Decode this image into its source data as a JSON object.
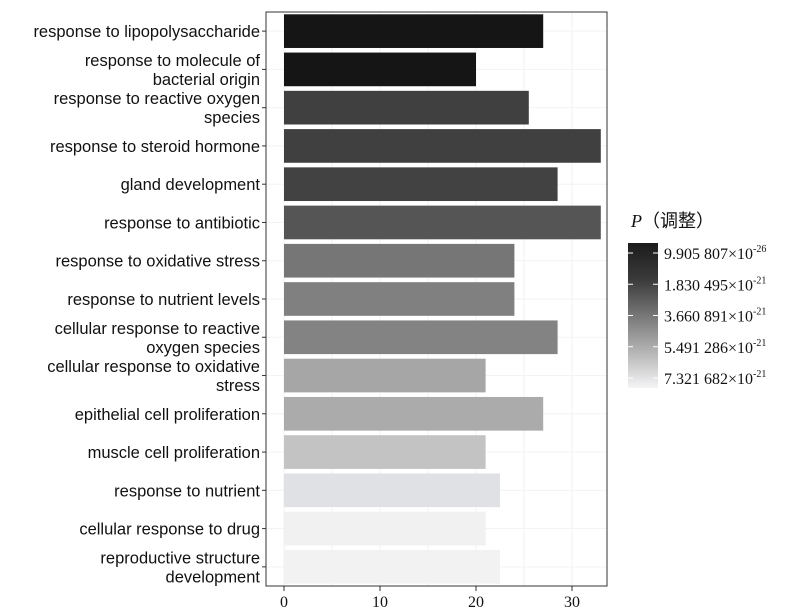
{
  "chart_data": {
    "type": "bar",
    "orientation": "horizontal",
    "categories": [
      "response to lipopolysaccharide",
      "response to molecule of bacterial origin",
      "response to reactive oxygen species",
      "response to steroid hormone",
      "gland development",
      "response to antibiotic",
      "response to oxidative stress",
      "response to nutrient levels",
      "cellular response to reactive oxygen species",
      "cellular response to oxidative stress",
      "epithelial cell proliferation",
      "muscle cell proliferation",
      "response to nutrient",
      "cellular response to drug",
      "reproductive structure development"
    ],
    "category_lines": [
      [
        "response to lipopolysaccharide"
      ],
      [
        "response to molecule of",
        "bacterial origin"
      ],
      [
        "response to reactive oxygen",
        "species"
      ],
      [
        "response to steroid hormone"
      ],
      [
        "gland development"
      ],
      [
        "response to antibiotic"
      ],
      [
        "response to oxidative stress"
      ],
      [
        "response to nutrient levels"
      ],
      [
        "cellular response to reactive",
        "oxygen species"
      ],
      [
        "cellular response to oxidative",
        "stress"
      ],
      [
        "epithelial cell proliferation"
      ],
      [
        "muscle cell proliferation"
      ],
      [
        "response to nutrient"
      ],
      [
        "cellular response to drug"
      ],
      [
        "reproductive structure",
        "development"
      ]
    ],
    "values": [
      27,
      20,
      25.5,
      33,
      28.5,
      33,
      24,
      24,
      28.5,
      21,
      27,
      21,
      22.5,
      21,
      22.5
    ],
    "bar_colors": [
      "#151515",
      "#151515",
      "#404040",
      "#404040",
      "#424242",
      "#555555",
      "#767676",
      "#808080",
      "#838383",
      "#a6a6a6",
      "#ababab",
      "#c3c3c3",
      "#dfe1e4",
      "#f1f1f1",
      "#f2f2f2"
    ],
    "xlim": [
      0,
      34
    ],
    "xticks": [
      0,
      10,
      20,
      30
    ],
    "xlabel": "",
    "ylabel": "",
    "grid": true,
    "legend": {
      "title_italic": "P",
      "title_rest": "（调整）",
      "placement": "right",
      "gradient_colors": [
        "#1c1c1c",
        "#3a3a3a",
        "#777777",
        "#b4b4b4",
        "#f5f5f7"
      ],
      "labels": [
        {
          "mantissa": "9.905 807",
          "exponent": "-26"
        },
        {
          "mantissa": "1.830 495",
          "exponent": "-21"
        },
        {
          "mantissa": "3.660 891",
          "exponent": "-21"
        },
        {
          "mantissa": "5.491 286",
          "exponent": "-21"
        },
        {
          "mantissa": "7.321 682",
          "exponent": "-21"
        }
      ]
    }
  }
}
